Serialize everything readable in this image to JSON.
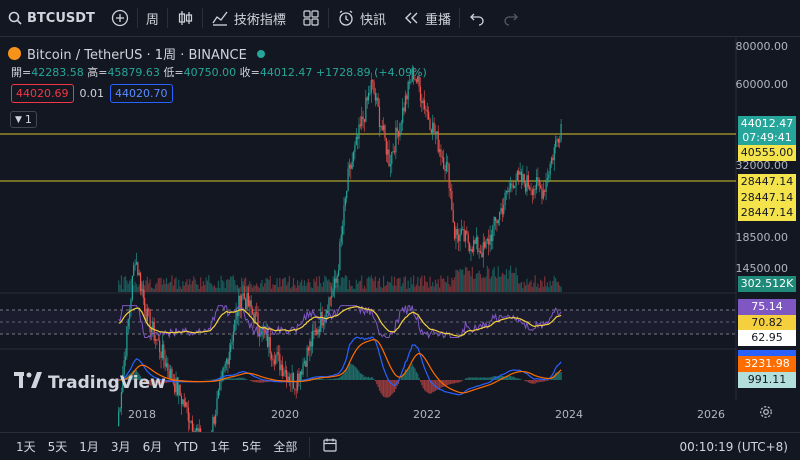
{
  "toolbar": {
    "symbol": "BTCUSDT",
    "interval": "周",
    "indicators_label": "技術指標",
    "alert_label": "快訊",
    "replay_label": "重播"
  },
  "legend": {
    "title": "Bitcoin / TetherUS · 1周 · BINANCE",
    "open_label": "開=",
    "open": "42283.58",
    "high_label": "高=",
    "high": "45879.63",
    "low_label": "低=",
    "low": "40750.00",
    "close_label": "收=",
    "close": "44012.47",
    "change": "+1728.89 (+4.09%)",
    "bid": "44020.69",
    "spread": "0.01",
    "ask": "44020.70",
    "indicator_count": "1"
  },
  "price_axis": {
    "labels": [
      "80000.00",
      "60000.00",
      "32000.00",
      "18500.00",
      "14500.00"
    ]
  },
  "price_tags": {
    "last_price": "44012.47",
    "countdown": "07:49:41",
    "level_1": "40555.00",
    "level_2": "28447.14",
    "level_3": "28447.14",
    "level_4": "28447.14",
    "volume": "302.512K",
    "rsi": "75.14",
    "rsi_ma": "70.82",
    "rsi_other": "62.95",
    "macd_1": "3231.98",
    "macd_2": "991.11"
  },
  "time_axis": {
    "labels": [
      "2018",
      "2020",
      "2022",
      "2024",
      "2026"
    ]
  },
  "bottom_bar": {
    "ranges": [
      "1天",
      "5天",
      "1月",
      "3月",
      "6月",
      "YTD",
      "1年",
      "5年",
      "全部"
    ],
    "clock": "00:10:19 (UTC+8)"
  },
  "brand": "TradingView",
  "colors": {
    "background": "#131722",
    "up": "#26a69a",
    "down": "#ef5350",
    "hline": "#d9c62b",
    "rsi": "#7e57c2",
    "rsi_ma": "#f4d03f",
    "macd": "#2962ff",
    "signal": "#ff6d00"
  },
  "chart_data": {
    "type": "candlestick",
    "interval": "1W",
    "series_approx_weekly_close": [
      {
        "x": "2017-09",
        "y": 4300
      },
      {
        "x": "2017-12",
        "y": 16000
      },
      {
        "x": "2018-02",
        "y": 10000
      },
      {
        "x": "2018-06",
        "y": 6400
      },
      {
        "x": "2018-12",
        "y": 3500
      },
      {
        "x": "2019-06",
        "y": 12000
      },
      {
        "x": "2019-12",
        "y": 7200
      },
      {
        "x": "2020-03",
        "y": 6000
      },
      {
        "x": "2020-10",
        "y": 13000
      },
      {
        "x": "2020-12",
        "y": 29000
      },
      {
        "x": "2021-04",
        "y": 60000
      },
      {
        "x": "2021-07",
        "y": 33000
      },
      {
        "x": "2021-11",
        "y": 66000
      },
      {
        "x": "2022-05",
        "y": 30000
      },
      {
        "x": "2022-06",
        "y": 19000
      },
      {
        "x": "2022-11",
        "y": 16500
      },
      {
        "x": "2023-04",
        "y": 29000
      },
      {
        "x": "2023-09",
        "y": 26500
      },
      {
        "x": "2023-12",
        "y": 44012
      }
    ],
    "horizontal_lines": [
      40555.0,
      28447.14
    ]
  }
}
